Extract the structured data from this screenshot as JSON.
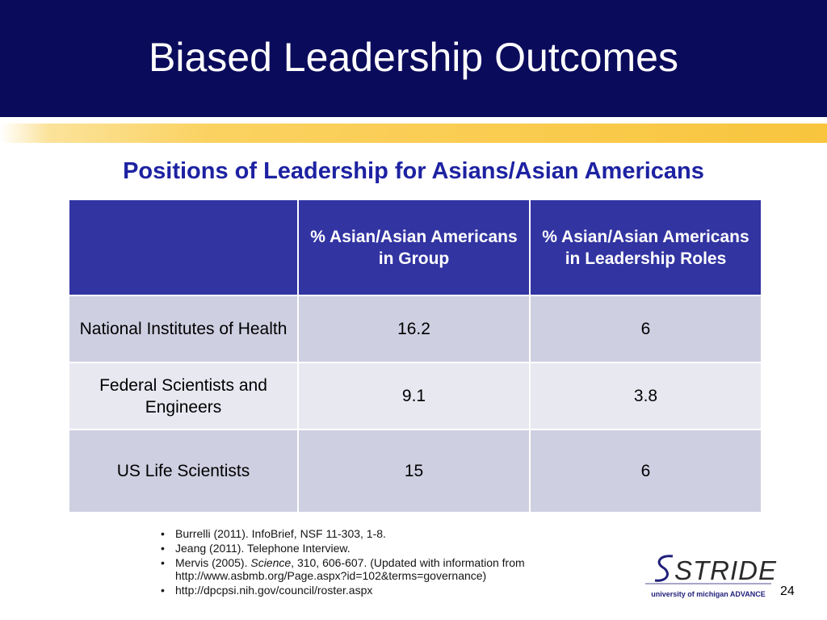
{
  "slide": {
    "title": "Biased Leadership Outcomes",
    "subtitle": "Positions of Leadership for Asians/Asian Americans",
    "page_number": "24"
  },
  "table": {
    "headers": [
      "",
      "% Asian/Asian Americans in Group",
      "% Asian/Asian Americans in Leadership Roles"
    ],
    "rows": [
      {
        "label": "National Institutes of Health",
        "group": "16.2",
        "leadership": "6"
      },
      {
        "label": "Federal Scientists and Engineers",
        "group": "9.1",
        "leadership": "3.8"
      },
      {
        "label": "US Life Scientists",
        "group": "15",
        "leadership": "6"
      }
    ]
  },
  "references": [
    {
      "before": "Burrelli (2011). InfoBrief, NSF 11-303, 1-8.",
      "italic": "",
      "after": ""
    },
    {
      "before": "Jeang (2011). Telephone Interview.",
      "italic": "",
      "after": ""
    },
    {
      "before": "Mervis (2005). ",
      "italic": "Science",
      "after": ", 310, 606-607. (Updated with information from http://www.asbmb.org/Page.aspx?id=102&terms=governance)"
    },
    {
      "before": "http://dpcpsi.nih.gov/council/roster.aspx",
      "italic": "",
      "after": ""
    }
  ],
  "logo": {
    "word": "STRIDE",
    "tagline": "university of michigan ADVANCE"
  },
  "colors": {
    "title_bar": "#0b0b5c",
    "gold_band": "#f8c53d",
    "subtitle": "#1d22a2",
    "table_header": "#3234a2",
    "row_dark": "#cfcfe2",
    "row_light": "#e8e8f1"
  }
}
